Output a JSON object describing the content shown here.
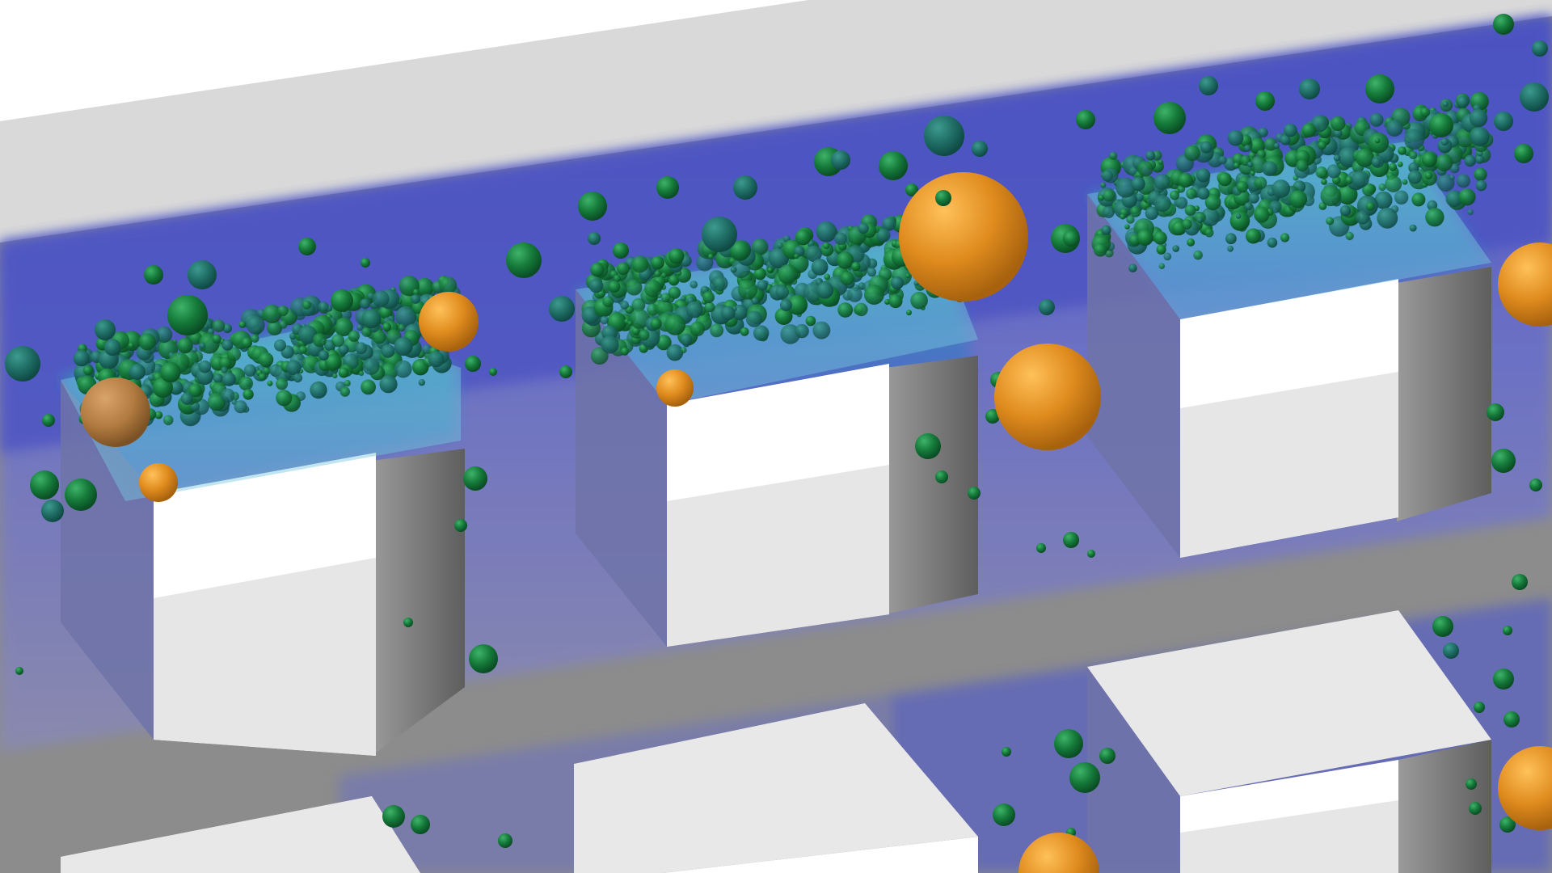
{
  "scene": {
    "colors": {
      "background": "#ffffff",
      "wall_top": "#d9d9d9",
      "wall_face": "#8a8a8a",
      "flow_field_low": "#5860c8",
      "flow_field_high": "#3aa6b4",
      "block_top": "#e8e8e8",
      "block_side": "#7c7c7c",
      "block_front": "#eeeeee",
      "particle_green": "#1a7a3c",
      "particle_orange": "#e8952a"
    },
    "blocks": [
      {
        "name": "block-upper-left"
      },
      {
        "name": "block-upper-middle"
      },
      {
        "name": "block-upper-right"
      },
      {
        "name": "block-lower-left"
      },
      {
        "name": "block-lower-middle"
      },
      {
        "name": "block-lower-right"
      }
    ],
    "particle_types": [
      "small-green-droplet",
      "large-orange-droplet"
    ]
  }
}
